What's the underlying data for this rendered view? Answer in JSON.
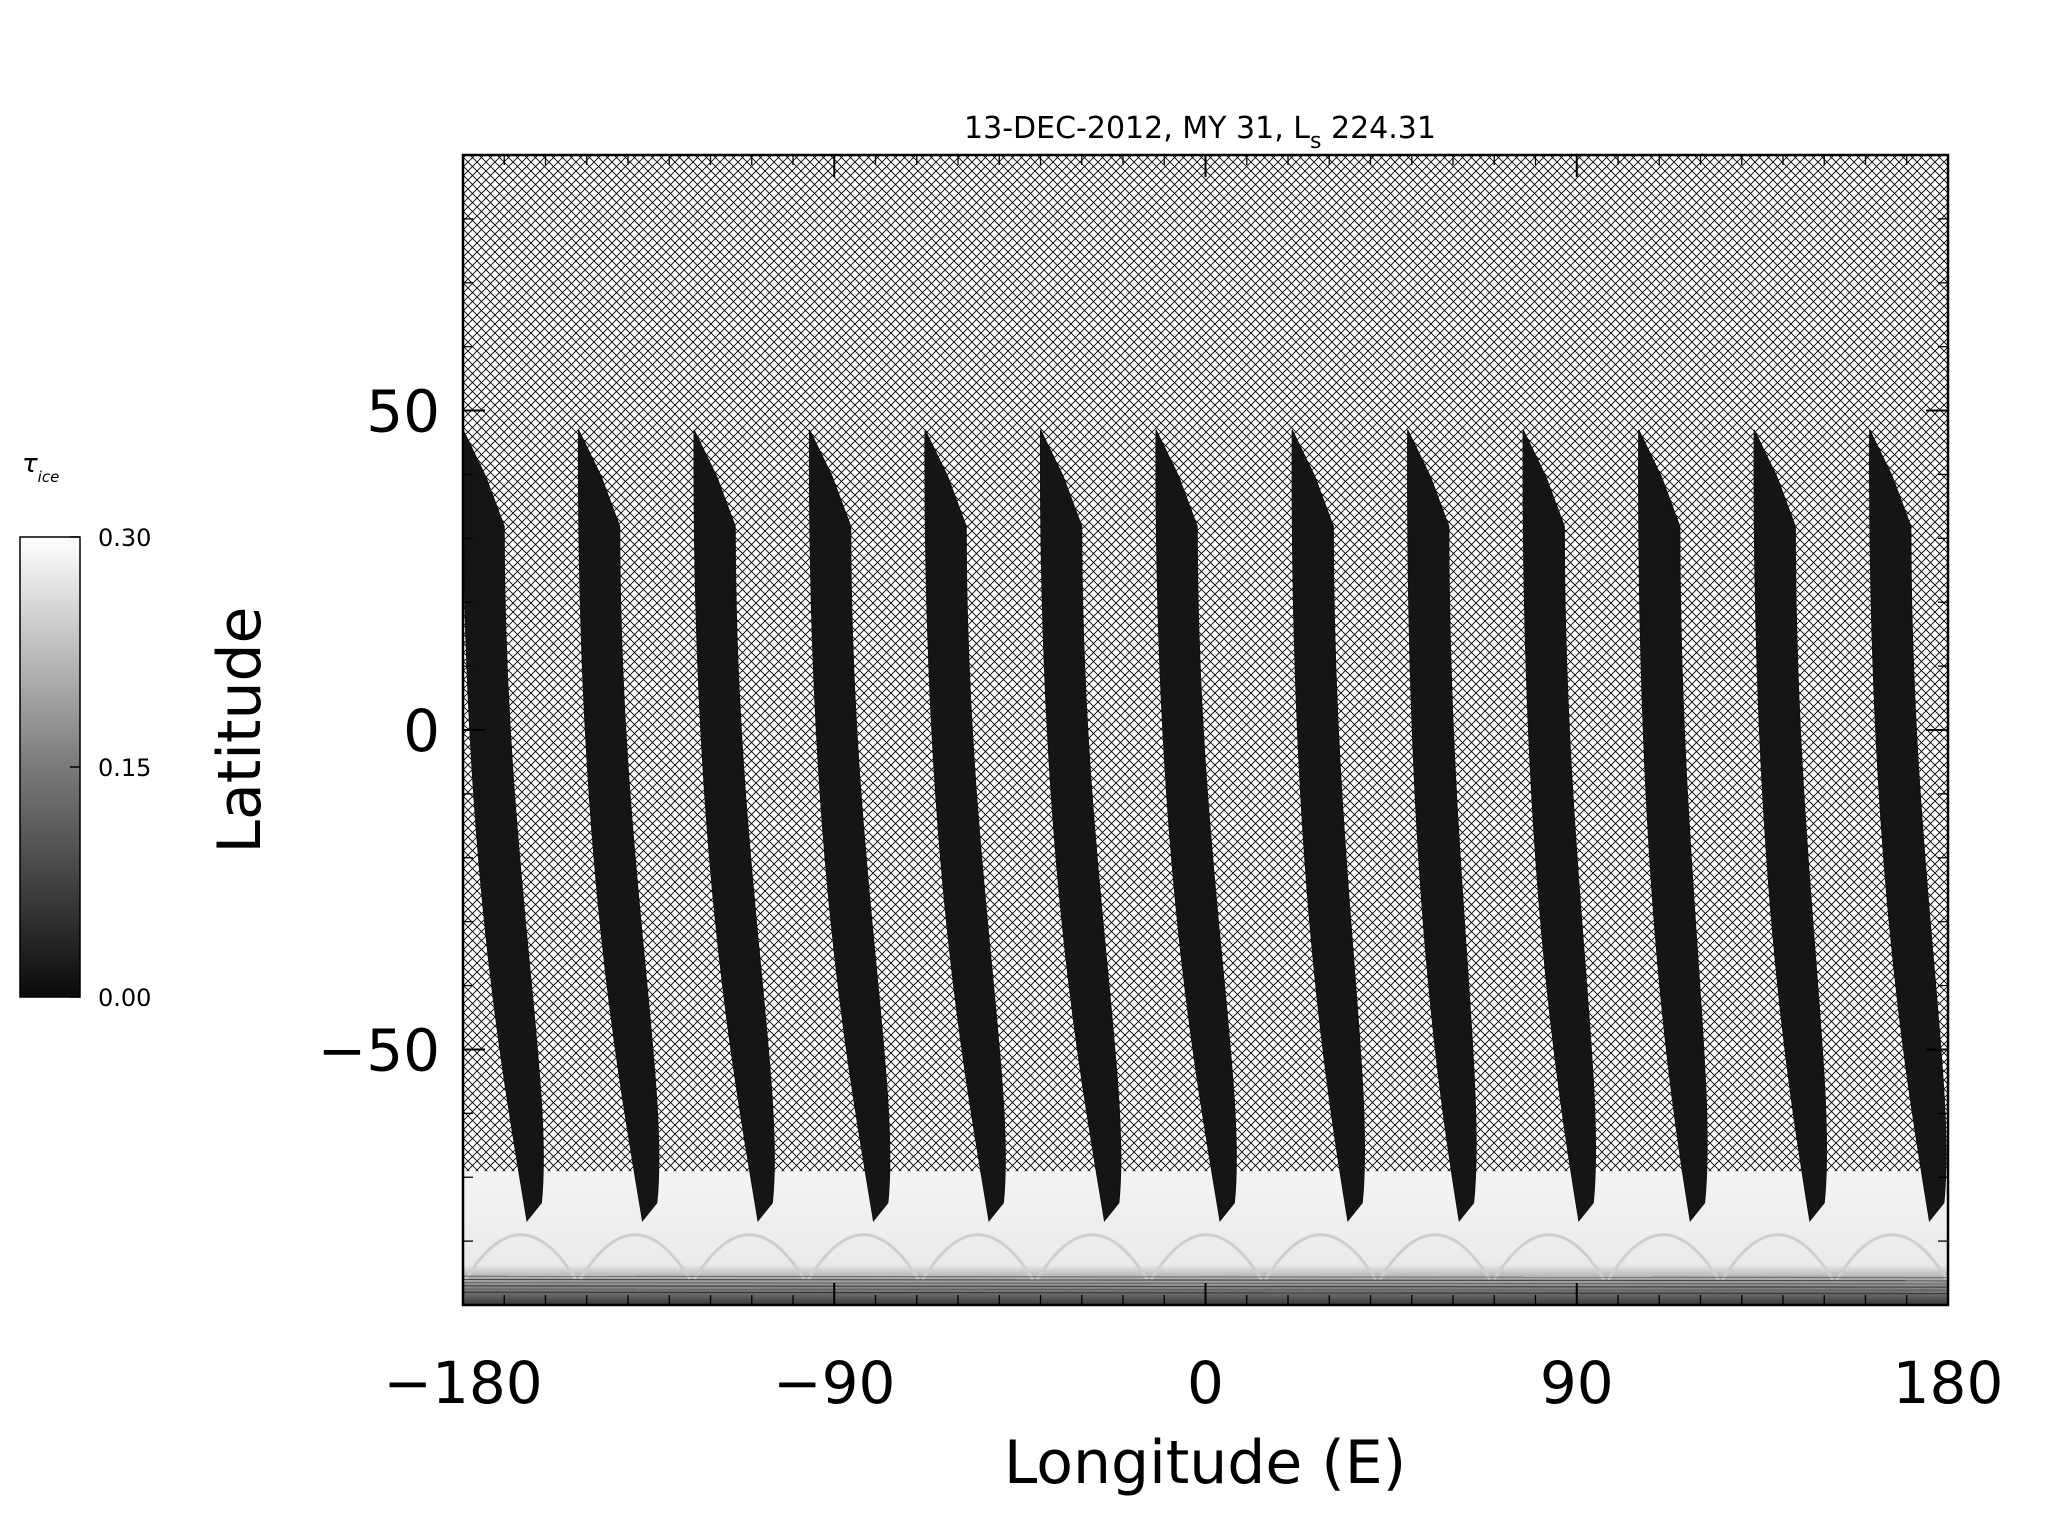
{
  "chart_data": {
    "type": "heatmap",
    "title": "13-DEC-2012, MY 31,  L",
    "title_sub": "s",
    "title_tail": " 224.31",
    "xlabel": "Longitude (E)",
    "ylabel": "Latitude",
    "xlim": [
      -180,
      180
    ],
    "ylim": [
      -90,
      90
    ],
    "x_ticks": [
      "-180",
      "-90",
      "0",
      "90",
      "180"
    ],
    "y_ticks": [
      "-50",
      "0",
      "50"
    ],
    "x_tick_values": [
      -180,
      -90,
      0,
      90,
      180
    ],
    "y_tick_values": [
      -50,
      0,
      50
    ],
    "grid": false,
    "no_data_fill": "crosshatch",
    "colorbar": {
      "label": "τ",
      "label_sub": "ice",
      "min": 0.0,
      "max": 0.3,
      "ticks": [
        "0.00",
        "0.15",
        "0.30"
      ],
      "colormap": "grayscale"
    },
    "swaths": [
      {
        "lon_south": -168,
        "lon_north": -180,
        "width": 10
      },
      {
        "lon_south": -140,
        "lon_north": -152,
        "width": 10
      },
      {
        "lon_south": -112,
        "lon_north": -124,
        "width": 10
      },
      {
        "lon_south": -84,
        "lon_north": -96,
        "width": 10
      },
      {
        "lon_south": -56,
        "lon_north": -68,
        "width": 10
      },
      {
        "lon_south": -28,
        "lon_north": -40,
        "width": 10
      },
      {
        "lon_south": 0,
        "lon_north": -12,
        "width": 10
      },
      {
        "lon_south": 31,
        "lon_north": 21,
        "width": 10
      },
      {
        "lon_south": 58,
        "lon_north": 49,
        "width": 10
      },
      {
        "lon_south": 87,
        "lon_north": 77,
        "width": 10
      },
      {
        "lon_south": 114,
        "lon_north": 105,
        "width": 10
      },
      {
        "lon_south": 143,
        "lon_north": 133,
        "width": 10
      },
      {
        "lon_south": 172,
        "lon_north": 161,
        "width": 10
      }
    ],
    "swath_lat_range": [
      -74,
      47
    ],
    "south_ice_band_lat": [
      -90,
      -70
    ]
  }
}
